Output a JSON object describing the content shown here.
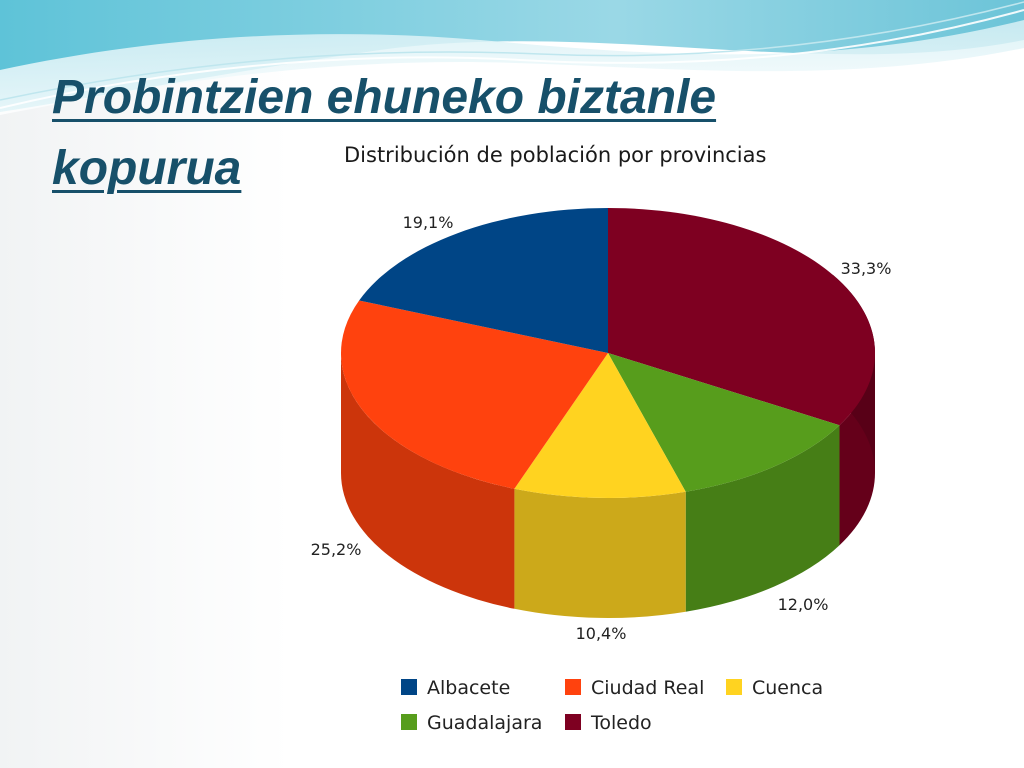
{
  "slide": {
    "title": "Probintzien ehuneko biztanle kopurua"
  },
  "chart_data": {
    "type": "pie",
    "title": "Distribución de población por provincias",
    "three_d": true,
    "legend_position": "bottom",
    "slices": [
      {
        "name": "Albacete",
        "value": 19.1,
        "label": "19,1%",
        "color": "#004586"
      },
      {
        "name": "Ciudad Real",
        "value": 25.2,
        "label": "25,2%",
        "color": "#ff420e"
      },
      {
        "name": "Cuenca",
        "value": 10.4,
        "label": "10,4%",
        "color": "#ffd320"
      },
      {
        "name": "Guadalajara",
        "value": 12.0,
        "label": "12,0%",
        "color": "#579d1c"
      },
      {
        "name": "Toledo",
        "value": 33.3,
        "label": "33,3%",
        "color": "#7e0021"
      }
    ],
    "legend": [
      "Albacete",
      "Ciudad Real",
      "Cuenca",
      "Guadalajara",
      "Toledo"
    ]
  }
}
